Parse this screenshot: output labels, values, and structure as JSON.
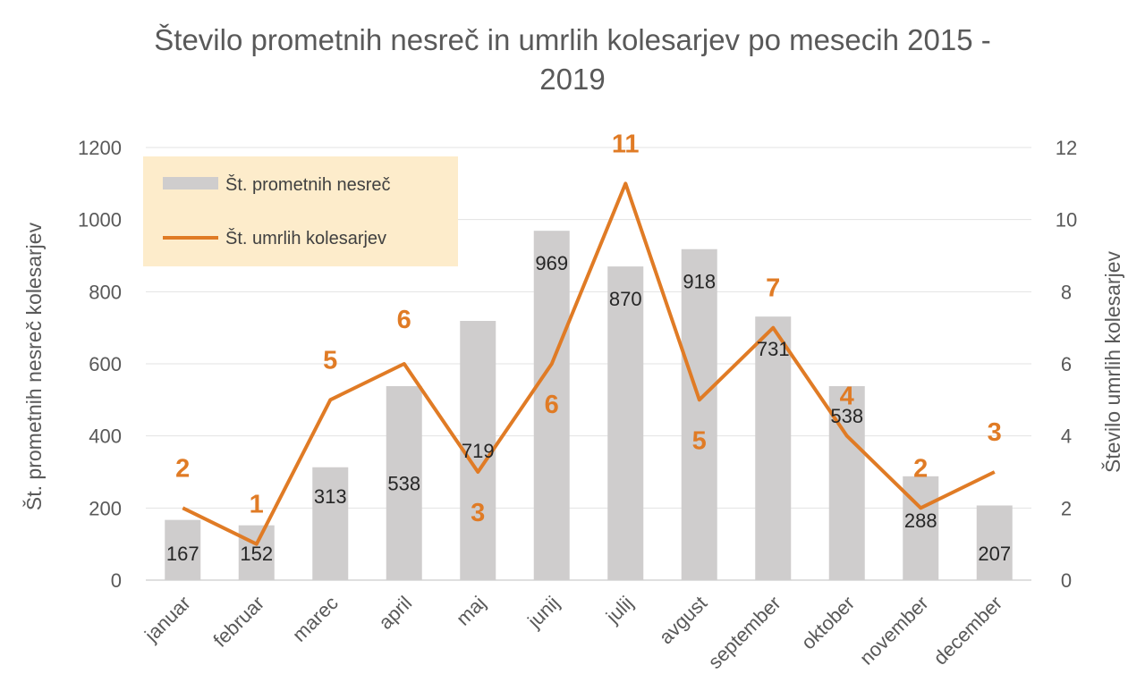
{
  "chart_data": {
    "type": "bar",
    "title_lines": [
      "Število prometnih nesreč in umrlih kolesarjev po mesecih 2015 -",
      "2019"
    ],
    "categories": [
      "januar",
      "februar",
      "marec",
      "april",
      "maj",
      "junij",
      "julij",
      "avgust",
      "september",
      "oktober",
      "november",
      "december"
    ],
    "series": [
      {
        "name": "Št. prometnih nesreč",
        "type": "bar",
        "axis": "left",
        "color": "#cfcdcd",
        "values": [
          167,
          152,
          313,
          538,
          719,
          969,
          870,
          918,
          731,
          538,
          288,
          207
        ]
      },
      {
        "name": "Št. umrlih kolesarjev",
        "type": "line",
        "axis": "right",
        "color": "#e07b25",
        "values": [
          2,
          1,
          5,
          6,
          3,
          6,
          11,
          5,
          7,
          4,
          2,
          3
        ]
      }
    ],
    "ylabel": "Št. prometnih nesreč kolesarjev",
    "y2label": "Število umrlih kolesarjev",
    "ylim": [
      0,
      1200
    ],
    "y2lim": [
      0,
      12
    ],
    "yticks": [
      "0",
      "200",
      "400",
      "600",
      "800",
      "1000",
      "1200"
    ],
    "y2ticks": [
      "0",
      "2",
      "4",
      "6",
      "8",
      "10",
      "12"
    ],
    "grid": true,
    "legend": {
      "position": "top-left",
      "background": "#fdeccb",
      "entries": [
        "Št. prometnih nesreč",
        "Št. umrlih kolesarjev"
      ]
    }
  }
}
